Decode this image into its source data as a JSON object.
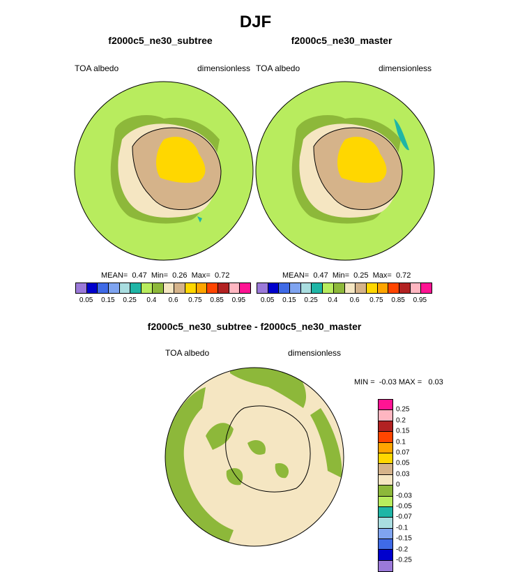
{
  "title": "DJF",
  "panel_left": {
    "title": "f2000c5_ne30_subtree",
    "variable": "TOA albedo",
    "units": "dimensionless",
    "stats": "MEAN=  0.47  Min=  0.26  Max=  0.72"
  },
  "panel_right": {
    "title": "f2000c5_ne30_master",
    "variable": "TOA albedo",
    "units": "dimensionless",
    "stats": "MEAN=  0.47  Min=  0.25  Max=  0.72"
  },
  "panel_diff": {
    "title": "f2000c5_ne30_subtree - f2000c5_ne30_master",
    "variable": "TOA albedo",
    "units": "dimensionless",
    "minmax": "MIN =  -0.03 MAX =   0.03"
  },
  "colorbar_top": {
    "colors": [
      "#9b79d9",
      "#0000cd",
      "#3f6ae6",
      "#7fa4f0",
      "#a9dde0",
      "#1fb5a6",
      "#b8ec5e",
      "#8db83a",
      "#f5e6c2",
      "#d5b38a",
      "#ffd700",
      "#ffa500",
      "#ff4500",
      "#b22222",
      "#ffb6c1",
      "#ff1493"
    ],
    "tick_labels": [
      "0.05",
      "0.15",
      "0.25",
      "0.4",
      "0.6",
      "0.75",
      "0.85",
      "0.95"
    ]
  },
  "colorbar_diff": {
    "colors": [
      "#ff1493",
      "#ffb6c1",
      "#b22222",
      "#ff4500",
      "#ffa500",
      "#ffd700",
      "#d5b38a",
      "#f5e6c2",
      "#8db83a",
      "#b8ec5e",
      "#1fb5a6",
      "#a9dde0",
      "#7fa4f0",
      "#3f6ae6",
      "#0000cd",
      "#9b79d9"
    ],
    "tick_labels": [
      "0.25",
      "0.2",
      "0.15",
      "0.1",
      "0.07",
      "0.05",
      "0.03",
      "0",
      "-0.03",
      "-0.05",
      "-0.07",
      "-0.1",
      "-0.15",
      "-0.2",
      "-0.25"
    ]
  },
  "map_colors": {
    "ocean": "#b8ec5e",
    "seaice_edge": "#8db83a",
    "shelf": "#f5e6c2",
    "land": "#d5b38a",
    "plateau": "#ffd700",
    "teal": "#1fb5a6",
    "diff_bg": "#f5e6c2",
    "diff_patch": "#8db83a"
  }
}
